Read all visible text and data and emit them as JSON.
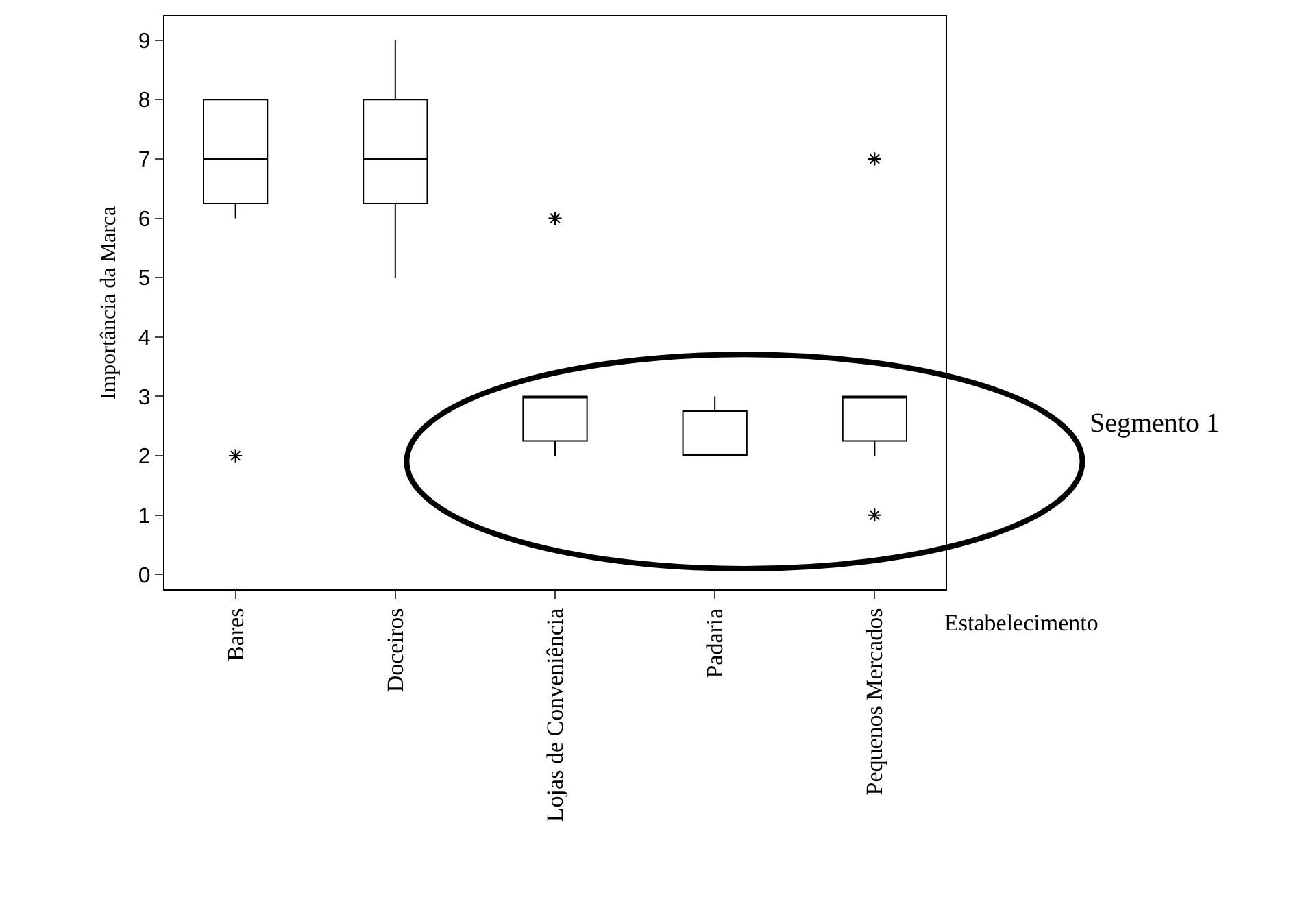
{
  "chart_data": {
    "type": "box",
    "categories": [
      "Bares",
      "Doceiros",
      "Lojas de Conveniência",
      "Padaria",
      "Pequenos Mercados"
    ],
    "boxes": [
      {
        "low": 6,
        "q1": 6.25,
        "median": 7,
        "q3": 8,
        "high": 8,
        "outliers": [
          2
        ]
      },
      {
        "low": 5,
        "q1": 6.25,
        "median": 7,
        "q3": 8,
        "high": 9
      },
      {
        "low": 2,
        "q1": 2.25,
        "median": 3,
        "q3": 3,
        "high": 3,
        "outliers": [
          6
        ]
      },
      {
        "low": 2,
        "q1": 2,
        "median": 2,
        "q3": 2.75,
        "high": 3
      },
      {
        "low": 2,
        "q1": 2.25,
        "median": 3,
        "q3": 3,
        "high": 3,
        "outliers": [
          7,
          1
        ]
      }
    ],
    "color": "#000000",
    "ylabel": "Importância da Marca",
    "xlabel": "Estabelecimento",
    "ylim": [
      -0.25,
      9.4
    ],
    "yticks": [
      0,
      1,
      2,
      3,
      4,
      5,
      6,
      7,
      8,
      9
    ],
    "annotations": [
      "Segmento 1"
    ],
    "marker": "cross"
  }
}
